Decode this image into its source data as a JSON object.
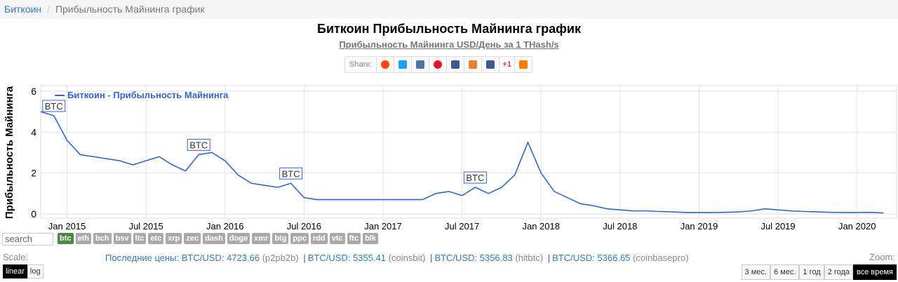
{
  "breadcrumb": {
    "home": "Биткоин",
    "separator": "/",
    "current": "Прибыльность Майнинга график"
  },
  "header": {
    "title": "Биткоин Прибыльность Майнинга график",
    "subtitle": "Прибыльность Майнинга USD/День за 1 THash/s"
  },
  "share": {
    "label": "Share:",
    "plus_one": "+1"
  },
  "chart_data": {
    "type": "line",
    "y_label": "Прибыльность Майнинга",
    "x": [
      "2014-11",
      "2014-12",
      "2015-01",
      "2015-02",
      "2015-03",
      "2015-04",
      "2015-05",
      "2015-06",
      "2015-07",
      "2015-08",
      "2015-09",
      "2015-10",
      "2015-11",
      "2015-12",
      "2016-01",
      "2016-02",
      "2016-03",
      "2016-04",
      "2016-05",
      "2016-06",
      "2016-07",
      "2016-08",
      "2016-09",
      "2016-10",
      "2016-11",
      "2016-12",
      "2017-01",
      "2017-02",
      "2017-03",
      "2017-04",
      "2017-05",
      "2017-06",
      "2017-07",
      "2017-08",
      "2017-09",
      "2017-10",
      "2017-11",
      "2017-12",
      "2018-01",
      "2018-02",
      "2018-03",
      "2018-04",
      "2018-05",
      "2018-06",
      "2018-07",
      "2018-08",
      "2018-09",
      "2018-10",
      "2018-11",
      "2018-12",
      "2019-01",
      "2019-02",
      "2019-03",
      "2019-04",
      "2019-05",
      "2019-06",
      "2019-07",
      "2019-08",
      "2019-09",
      "2019-10",
      "2019-11",
      "2019-12",
      "2020-01",
      "2020-02",
      "2020-03"
    ],
    "series": [
      {
        "name": "Биткоин - Прибыльность Майнинга",
        "color": "#3366cc",
        "values": [
          5.0,
          4.8,
          3.6,
          2.9,
          2.8,
          2.7,
          2.6,
          2.4,
          2.6,
          2.8,
          2.4,
          2.1,
          2.9,
          3.0,
          2.6,
          1.9,
          1.5,
          1.4,
          1.3,
          1.5,
          0.8,
          0.7,
          0.7,
          0.7,
          0.7,
          0.7,
          0.7,
          0.7,
          0.7,
          0.7,
          1.0,
          1.1,
          0.9,
          1.3,
          1.0,
          1.3,
          1.9,
          3.5,
          2.0,
          1.1,
          0.8,
          0.5,
          0.4,
          0.25,
          0.2,
          0.15,
          0.15,
          0.12,
          0.1,
          0.07,
          0.07,
          0.07,
          0.08,
          0.1,
          0.15,
          0.25,
          0.2,
          0.15,
          0.12,
          0.1,
          0.08,
          0.07,
          0.07,
          0.08,
          0.05
        ]
      }
    ],
    "annotations": [
      {
        "x": "2014-12",
        "text": "BTC"
      },
      {
        "x": "2015-11",
        "text": "BTC"
      },
      {
        "x": "2016-06",
        "text": "BTC"
      },
      {
        "x": "2017-08",
        "text": "BTC"
      }
    ],
    "xlim": [
      "2014-11",
      "2020-04"
    ],
    "xticks": [
      {
        "value": "2015-01",
        "label": "Jan 2015"
      },
      {
        "value": "2015-07",
        "label": "Jul 2015"
      },
      {
        "value": "2016-01",
        "label": "Jan 2016"
      },
      {
        "value": "2016-07",
        "label": "Jul 2016"
      },
      {
        "value": "2017-01",
        "label": "Jan 2017"
      },
      {
        "value": "2017-07",
        "label": "Jul 2017"
      },
      {
        "value": "2018-01",
        "label": "Jan 2018"
      },
      {
        "value": "2018-07",
        "label": "Jul 2018"
      },
      {
        "value": "2019-01",
        "label": "Jan 2019"
      },
      {
        "value": "2019-07",
        "label": "Jul 2019"
      },
      {
        "value": "2020-01",
        "label": "Jan 2020"
      }
    ],
    "ylim": [
      0,
      6
    ],
    "yticks": [
      0,
      2,
      4,
      6
    ],
    "grid": true,
    "legend": "top-left"
  },
  "controls": {
    "search_placeholder": "search",
    "coins": [
      "btc",
      "eth",
      "bch",
      "bsv",
      "ltc",
      "etc",
      "xrp",
      "zec",
      "dash",
      "doge",
      "xmr",
      "btg",
      "ppc",
      "rdd",
      "vtc",
      "ftc",
      "blk"
    ],
    "active_coin": 0,
    "scale_label": "Scale:",
    "scales": [
      "linear",
      "log"
    ],
    "active_scale": 0,
    "zoom_label": "Zoom:",
    "zooms": [
      "3 мес.",
      "6 мес.",
      "1 год",
      "2 года",
      "все время"
    ],
    "active_zoom": 4
  },
  "prices": {
    "label": "Последние цены:",
    "separator": "|",
    "items": [
      {
        "pair": "BTC/USD:",
        "price": 4723.66,
        "exchange": "(p2pb2b)"
      },
      {
        "pair": "BTC/USD:",
        "price": 5355.41,
        "exchange": "(coinsbit)"
      },
      {
        "pair": "BTC/USD:",
        "price": 5356.83,
        "exchange": "(hitbtc)"
      },
      {
        "pair": "BTC/USD:",
        "price": 5366.65,
        "exchange": "(coinbasepro)"
      }
    ]
  }
}
